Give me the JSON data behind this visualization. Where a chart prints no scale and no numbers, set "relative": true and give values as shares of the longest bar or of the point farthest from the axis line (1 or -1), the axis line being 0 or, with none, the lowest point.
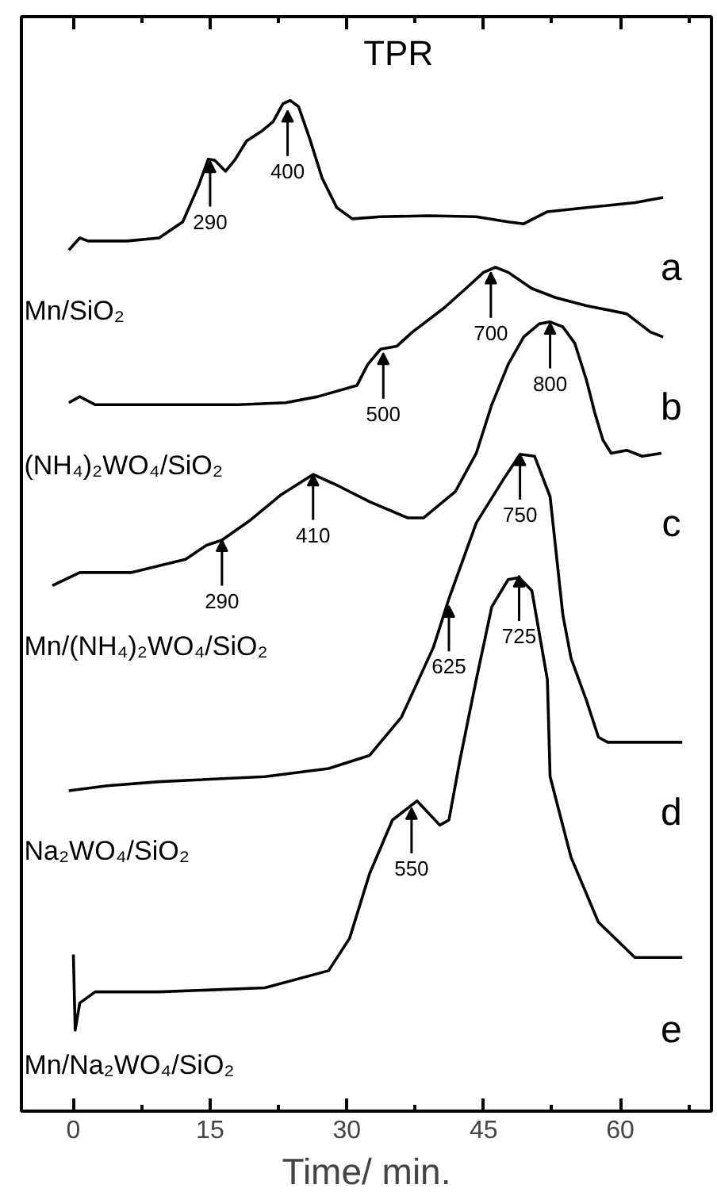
{
  "chart_data": {
    "type": "line",
    "title": "TPR",
    "xlabel": "Time/ min.",
    "relative": true,
    "xlim": [
      -5.7,
      70
    ],
    "xticks": [
      0,
      15,
      30,
      45,
      60
    ],
    "grid": false,
    "marker": "none",
    "line_style": "solid",
    "series": [
      {
        "name": "Mn/SiO₂",
        "color": "#000000",
        "x": [
          -0.5,
          0.7,
          1.6,
          5.9,
          9.4,
          12.0,
          13.7,
          14.8,
          15.5,
          16.7,
          17.7,
          19.0,
          20.7,
          21.9,
          23.0,
          23.8,
          24.7,
          25.9,
          27.3,
          28.9,
          30.6,
          33.7,
          39.0,
          44.2,
          47.7,
          49.4,
          52.0,
          56.3,
          61.6,
          64.7
        ],
        "values": [
          0.852,
          0.864,
          0.861,
          0.861,
          0.864,
          0.88,
          0.915,
          0.942,
          0.941,
          0.93,
          0.941,
          0.96,
          0.97,
          0.979,
          0.997,
          1.0,
          0.994,
          0.963,
          0.923,
          0.894,
          0.883,
          0.885,
          0.886,
          0.885,
          0.88,
          0.878,
          0.89,
          0.894,
          0.899,
          0.904
        ]
      },
      {
        "name": "(NH₄)₂WO₄/SiO₂",
        "color": "#000000",
        "x": [
          -0.5,
          0.7,
          2.4,
          9.4,
          18.1,
          23.3,
          26.8,
          31.1,
          32.3,
          33.7,
          35.5,
          37.2,
          40.7,
          43.3,
          45.0,
          46.3,
          47.7,
          50.3,
          52.9,
          56.3,
          60.7,
          63.3,
          64.7
        ],
        "values": [
          0.701,
          0.707,
          0.699,
          0.699,
          0.699,
          0.701,
          0.707,
          0.718,
          0.739,
          0.754,
          0.757,
          0.771,
          0.795,
          0.816,
          0.83,
          0.835,
          0.83,
          0.814,
          0.805,
          0.797,
          0.789,
          0.771,
          0.766
        ]
      },
      {
        "name": "Mn/(NH₄)₂WO₄/SiO₂",
        "color": "#000000",
        "x": [
          -2.3,
          0.7,
          6.4,
          12.3,
          14.6,
          16.3,
          19.3,
          22.8,
          26.3,
          29.0,
          32.5,
          36.7,
          38.4,
          41.9,
          44.2,
          45.9,
          47.7,
          49.4,
          51.1,
          52.3,
          53.7,
          55.0,
          56.3,
          57.2,
          58.1,
          59.0,
          60.7,
          62.4,
          64.5
        ],
        "values": [
          0.52,
          0.533,
          0.533,
          0.546,
          0.56,
          0.565,
          0.584,
          0.61,
          0.63,
          0.619,
          0.603,
          0.587,
          0.587,
          0.613,
          0.651,
          0.699,
          0.739,
          0.766,
          0.779,
          0.781,
          0.776,
          0.76,
          0.723,
          0.691,
          0.664,
          0.651,
          0.654,
          0.648,
          0.651
        ]
      },
      {
        "name": "Na₂WO₄/SiO₂",
        "color": "#000000",
        "x": [
          -0.5,
          3.7,
          9.4,
          21.0,
          28.0,
          32.5,
          36.0,
          39.5,
          41.2,
          44.2,
          47.1,
          49.0,
          50.6,
          52.3,
          53.7,
          54.6,
          56.3,
          57.6,
          58.6,
          66.8
        ],
        "values": [
          0.317,
          0.322,
          0.326,
          0.331,
          0.339,
          0.352,
          0.39,
          0.459,
          0.507,
          0.582,
          0.624,
          0.65,
          0.648,
          0.608,
          0.491,
          0.448,
          0.406,
          0.37,
          0.365,
          0.365
        ]
      },
      {
        "name": "Mn/Na₂WO₄/SiO₂",
        "color": "#000000",
        "x": [
          0.0,
          0.2,
          0.7,
          2.4,
          9.4,
          21.0,
          28.0,
          30.3,
          32.5,
          35.0,
          37.7,
          40.2,
          41.2,
          42.4,
          44.2,
          45.9,
          47.7,
          48.9,
          50.3,
          52.0,
          52.3,
          54.6,
          57.6,
          61.6,
          66.8
        ],
        "values": [
          0.155,
          0.08,
          0.107,
          0.118,
          0.118,
          0.122,
          0.139,
          0.171,
          0.235,
          0.288,
          0.307,
          0.283,
          0.288,
          0.347,
          0.427,
          0.499,
          0.526,
          0.528,
          0.515,
          0.427,
          0.331,
          0.251,
          0.187,
          0.152,
          0.152
        ]
      }
    ],
    "annotations": [
      {
        "text": "290",
        "x": 15.0,
        "y": 0.94
      },
      {
        "text": "400",
        "x": 23.5,
        "y": 0.99
      },
      {
        "text": "500",
        "x": 34.0,
        "y": 0.75
      },
      {
        "text": "700",
        "x": 45.8,
        "y": 0.83
      },
      {
        "text": "290",
        "x": 16.3,
        "y": 0.565
      },
      {
        "text": "410",
        "x": 26.3,
        "y": 0.63
      },
      {
        "text": "800",
        "x": 52.3,
        "y": 0.78
      },
      {
        "text": "625",
        "x": 41.2,
        "y": 0.5
      },
      {
        "text": "750",
        "x": 49.0,
        "y": 0.65
      },
      {
        "text": "550",
        "x": 37.1,
        "y": 0.3
      },
      {
        "text": "725",
        "x": 48.9,
        "y": 0.53
      },
      "a",
      "b",
      "c",
      "d",
      "e"
    ]
  }
}
